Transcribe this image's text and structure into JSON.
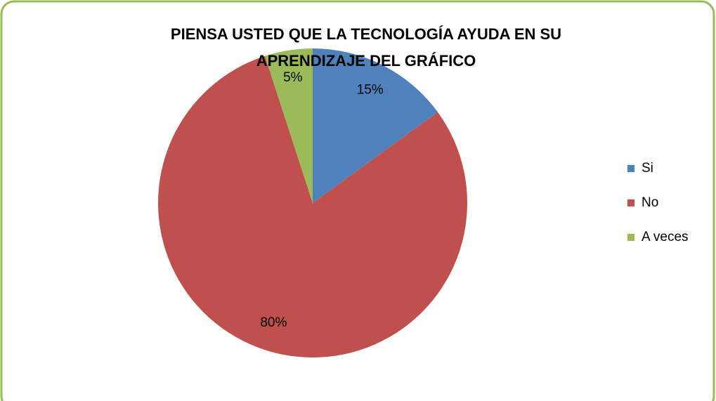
{
  "chart_data": {
    "type": "pie",
    "title": [
      "PIENSA USTED QUE LA TECNOLOGÍA AYUDA EN  SU",
      "APRENDIZAJE DEL GRÁFICO"
    ],
    "categories": [
      "Si",
      "No",
      "A veces"
    ],
    "values": [
      15,
      80,
      5
    ],
    "value_labels": [
      "15%",
      "80%",
      "5%"
    ],
    "colors": [
      "#4f81bd",
      "#c0504d",
      "#9bbb59"
    ],
    "legend": "right"
  }
}
